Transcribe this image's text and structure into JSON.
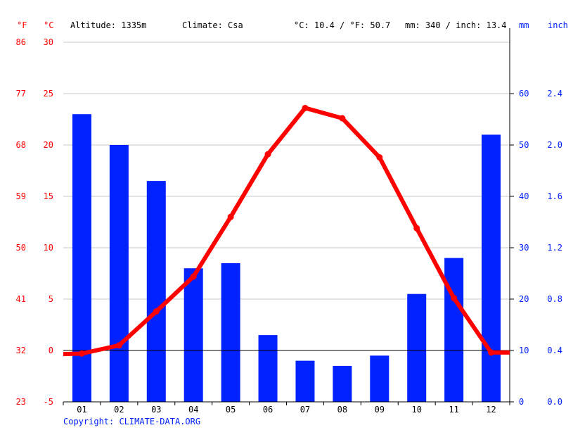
{
  "header": {
    "unit_f": "°F",
    "unit_c": "°C",
    "altitude": "Altitude: 1335m",
    "climate": "Climate: Csa",
    "temp_avg": "°C: 10.4 / °F: 50.7",
    "precip_total": "mm: 340 / inch: 13.4",
    "unit_mm": "mm",
    "unit_inch": "inch"
  },
  "footer": {
    "copyright": "Copyright: CLIMATE-DATA.ORG"
  },
  "colors": {
    "temperature": "#ff0000",
    "precipitation": "#0022ff",
    "grid": "#c8c8c8",
    "axis": "#000000"
  },
  "chart_data": {
    "type": "bar",
    "categories": [
      "01",
      "02",
      "03",
      "04",
      "05",
      "06",
      "07",
      "08",
      "09",
      "10",
      "11",
      "12"
    ],
    "series": [
      {
        "type": "bar",
        "axis": "right",
        "values": [
          56,
          50,
          43,
          26,
          27,
          13,
          8,
          7,
          9,
          21,
          28,
          52
        ]
      },
      {
        "type": "line",
        "axis": "left",
        "values": [
          -0.3,
          0.5,
          3.8,
          7.2,
          13.0,
          19.1,
          23.6,
          22.6,
          18.8,
          11.9,
          5.1,
          -0.2
        ]
      }
    ],
    "y_left_c_ticks": [
      -5,
      0,
      5,
      10,
      15,
      20,
      25,
      30
    ],
    "y_left_f_ticks": [
      23,
      32,
      41,
      50,
      59,
      68,
      77,
      86
    ],
    "y_right_mm_ticks": [
      0,
      10,
      20,
      30,
      40,
      50,
      60
    ],
    "y_right_inch_ticks": [
      "0.0",
      "0.4",
      "0.8",
      "1.2",
      "1.6",
      "2.0",
      "2.4"
    ],
    "ylim_c": [
      -5,
      30
    ],
    "ylim_mm": [
      0,
      70
    ],
    "grid": true
  }
}
